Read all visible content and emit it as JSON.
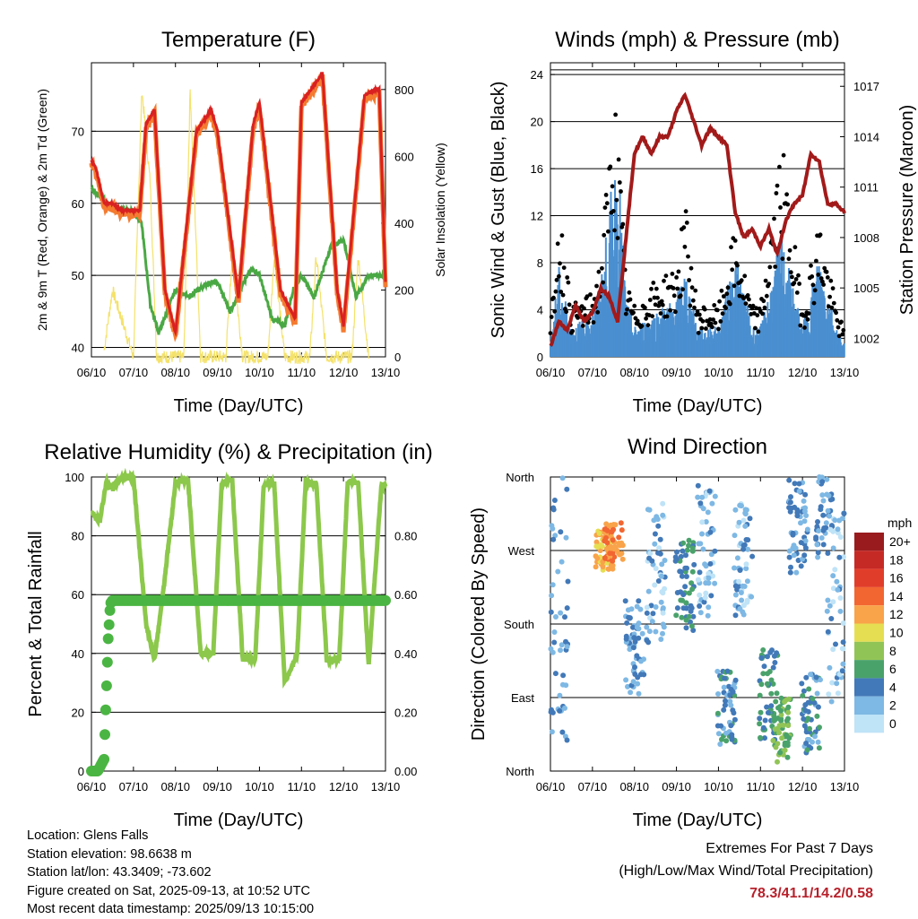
{
  "colors": {
    "temp2m": "#d92121",
    "temp9m": "#f47b30",
    "dewpoint": "#4aa844",
    "solar": "#f4e26b",
    "wind": "#4a8fd0",
    "gust": "#000000",
    "pressure": "#a21a1a",
    "rh": "#8cc84b",
    "precip": "#4bb543",
    "extremes": "#b8212b"
  },
  "info": {
    "location": "Location: Glens Falls",
    "elevation": "Station elevation: 98.6638 m",
    "latlon": "Station lat/lon: 43.3409; -73.602",
    "created": "Figure created on Sat, 2025-09-13, at 10:52 UTC",
    "recent": "Most recent data timestamp: 2025/09/13 10:15:00"
  },
  "extremes": {
    "title": "Extremes For Past 7 Days",
    "subtitle": "(High/Low/Max Wind/Total Precipitation)",
    "values": "78.3/41.1/14.2/0.58"
  },
  "chart_data": [
    {
      "type": "line",
      "title": "Temperature (F)",
      "xlabel": "Time (Day/UTC)",
      "ylabel": "2m & 9m T (Red, Orange) & 2m Td (Green)",
      "y2label": "Solar Insolation (Yellow)",
      "xticks": [
        "06/10",
        "07/10",
        "08/10",
        "09/10",
        "10/10",
        "11/10",
        "12/10",
        "13/10"
      ],
      "ylim": [
        38.7,
        79.5
      ],
      "yticks": [
        40,
        50,
        60,
        70
      ],
      "y2lim": [
        0,
        880
      ],
      "y2ticks": [
        0,
        200,
        400,
        600,
        800
      ],
      "series": [
        {
          "key": "temp2m",
          "x": [
            0,
            0.1,
            0.3,
            0.5,
            0.7,
            0.85,
            1.0,
            1.15,
            1.3,
            1.5,
            1.75,
            2.0,
            2.5,
            2.85,
            3.0,
            3.5,
            3.85,
            4.0,
            4.5,
            4.85,
            5.0,
            5.5,
            5.85,
            6.0,
            6.5,
            6.85,
            7.0
          ],
          "y": [
            66,
            65,
            60,
            60,
            59,
            59,
            59,
            59,
            71,
            73,
            48,
            42,
            70,
            73,
            70,
            47,
            71,
            74,
            48,
            44,
            74,
            78,
            48,
            43,
            75,
            76,
            49
          ]
        },
        {
          "key": "dewpoint",
          "x": [
            0,
            0.2,
            0.4,
            0.7,
            1.0,
            1.2,
            1.4,
            1.6,
            2.0,
            2.3,
            2.8,
            3.0,
            3.3,
            3.8,
            4.0,
            4.3,
            4.6,
            4.8,
            5.0,
            5.3,
            5.7,
            6.0,
            6.3,
            6.6,
            7.0
          ],
          "y": [
            62,
            61,
            60,
            59,
            59,
            57,
            46,
            42,
            48,
            47,
            49,
            49,
            45,
            51,
            50,
            44,
            43,
            48,
            50,
            47,
            54,
            55,
            47,
            50,
            50
          ]
        },
        {
          "key": "solar",
          "x": [
            0.3,
            0.5,
            1.0,
            1.2,
            1.4,
            1.55,
            1.7,
            2.2,
            2.35,
            2.6,
            3.2,
            3.35,
            3.6,
            4.2,
            4.35,
            4.6,
            5.2,
            5.35,
            5.6,
            6.2,
            6.35,
            6.6
          ],
          "y": [
            20,
            200,
            0,
            800,
            520,
            0,
            0,
            0,
            800,
            0,
            0,
            300,
            0,
            0,
            300,
            0,
            0,
            300,
            0,
            0,
            300,
            0
          ]
        }
      ]
    },
    {
      "type": "line",
      "title": "Winds (mph) & Pressure (mb)",
      "xlabel": "Time (Day/UTC)",
      "ylabel": "Sonic Wind & Gust (Blue, Black)",
      "y2label": "Station Pressure (Maroon)",
      "xticks": [
        "06/10",
        "07/10",
        "08/10",
        "09/10",
        "10/10",
        "11/10",
        "12/10",
        "13/10"
      ],
      "ylim": [
        0,
        25
      ],
      "yticks": [
        0,
        4,
        8,
        12,
        16,
        20,
        24
      ],
      "y2lim": [
        1000.9,
        1018.4
      ],
      "y2ticks": [
        1002,
        1005,
        1008,
        1011,
        1014,
        1017
      ],
      "series": [
        {
          "key": "wind",
          "x": [
            0,
            0.2,
            0.5,
            1.0,
            1.2,
            1.4,
            1.6,
            1.8,
            2.0,
            2.5,
            3.0,
            3.2,
            3.5,
            4.0,
            4.4,
            4.8,
            5.0,
            5.5,
            6.0,
            6.4,
            6.8,
            7.0
          ],
          "y": [
            1,
            6,
            2,
            3,
            5,
            10,
            14,
            4,
            2,
            3,
            4,
            6,
            2,
            2,
            7,
            2,
            2,
            8,
            2,
            7,
            2,
            1
          ]
        },
        {
          "key": "gust",
          "x": [
            0,
            0.2,
            0.5,
            1.0,
            1.2,
            1.4,
            1.5,
            1.6,
            1.8,
            2.0,
            2.5,
            3.0,
            3.2,
            3.5,
            4.0,
            4.4,
            4.8,
            5.0,
            5.5,
            6.0,
            6.4,
            6.8,
            7.0
          ],
          "y": [
            2,
            12,
            4,
            5,
            8,
            16,
            22,
            18,
            6,
            4,
            6,
            7,
            12,
            4,
            4,
            10,
            4,
            4,
            17,
            4,
            11,
            4,
            2
          ]
        },
        {
          "key": "pressure",
          "x": [
            0,
            0.2,
            0.4,
            0.6,
            0.8,
            1.0,
            1.2,
            1.4,
            1.6,
            1.8,
            2.0,
            2.2,
            2.4,
            2.6,
            2.8,
            3.0,
            3.2,
            3.4,
            3.6,
            3.8,
            4.0,
            4.2,
            4.4,
            4.6,
            4.8,
            5.0,
            5.2,
            5.4,
            5.6,
            5.8,
            6.0,
            6.2,
            6.4,
            6.6,
            6.8,
            7.0
          ],
          "y": [
            1001.5,
            1003,
            1002.5,
            1004,
            1003,
            1003.5,
            1005,
            1004.5,
            1003,
            1008,
            1013,
            1014,
            1013,
            1014,
            1014,
            1015.5,
            1016.5,
            1015,
            1013.5,
            1014.5,
            1014,
            1013.5,
            1009.5,
            1008,
            1008.5,
            1007.5,
            1008.5,
            1007,
            1009,
            1010,
            1010.5,
            1013,
            1012.5,
            1010,
            1010,
            1009.5
          ]
        }
      ]
    },
    {
      "type": "line",
      "title": "Relative Humidity (%) & Precipitation (in)",
      "xlabel": "Time (Day/UTC)",
      "ylabel": "Percent & Total Rainfall",
      "xticks": [
        "06/10",
        "07/10",
        "08/10",
        "09/10",
        "10/10",
        "11/10",
        "12/10",
        "13/10"
      ],
      "ylim": [
        0,
        100
      ],
      "yticks": [
        0,
        20,
        40,
        60,
        80,
        100
      ],
      "y2lim": [
        0,
        1.0
      ],
      "y2ticks": [
        "0.00",
        "0.20",
        "0.40",
        "0.60",
        "0.80"
      ],
      "series": [
        {
          "key": "rh",
          "x": [
            0,
            0.2,
            0.35,
            0.5,
            0.7,
            1.0,
            1.3,
            1.5,
            1.7,
            2.0,
            2.3,
            2.6,
            2.9,
            3.1,
            3.35,
            3.6,
            3.9,
            4.1,
            4.35,
            4.6,
            4.9,
            5.1,
            5.35,
            5.6,
            5.9,
            6.1,
            6.35,
            6.6,
            6.9,
            7.0
          ],
          "y": [
            88,
            85,
            98,
            96,
            100,
            100,
            50,
            38,
            60,
            98,
            99,
            40,
            40,
            98,
            99,
            38,
            38,
            97,
            98,
            30,
            40,
            98,
            98,
            38,
            38,
            98,
            98,
            36,
            97,
            97
          ]
        },
        {
          "key": "precip",
          "x": [
            0,
            0.15,
            0.3,
            0.35,
            0.4,
            0.45,
            0.5,
            1.0,
            2.0,
            3.0,
            4.0,
            5.0,
            6.0,
            7.0
          ],
          "y": [
            0.0,
            0.0,
            0.04,
            0.25,
            0.45,
            0.57,
            0.58,
            0.58,
            0.58,
            0.58,
            0.58,
            0.58,
            0.58,
            0.58
          ]
        }
      ]
    },
    {
      "type": "scatter",
      "title": "Wind Direction",
      "xlabel": "Time (Day/UTC)",
      "ylabel": "Direction (Colored By Speed)",
      "xticks": [
        "06/10",
        "07/10",
        "08/10",
        "09/10",
        "10/10",
        "11/10",
        "12/10",
        "13/10"
      ],
      "yticks": [
        "North",
        "East",
        "South",
        "West",
        "North"
      ],
      "ylim": [
        0,
        360
      ],
      "legend_title": "mph",
      "legend": [
        "20+",
        "18",
        "16",
        "14",
        "12",
        "10",
        "8",
        "6",
        "4",
        "2",
        "0"
      ],
      "legend_colors": [
        "#991b1e",
        "#c62a25",
        "#e13d2b",
        "#f26631",
        "#f9a34a",
        "#e6de52",
        "#91c456",
        "#4aa26b",
        "#4279b8",
        "#7eb8e4",
        "#bfe3f7"
      ],
      "clusters": [
        {
          "x": 0.2,
          "dir": 200,
          "spread": 170,
          "speed": 3
        },
        {
          "x": 1.3,
          "dir": 270,
          "spread": 25,
          "speed": 11
        },
        {
          "x": 1.5,
          "dir": 280,
          "spread": 25,
          "speed": 13
        },
        {
          "x": 2.0,
          "dir": 150,
          "spread": 60,
          "speed": 3
        },
        {
          "x": 2.5,
          "dir": 240,
          "spread": 90,
          "speed": 2
        },
        {
          "x": 3.2,
          "dir": 230,
          "spread": 60,
          "speed": 5
        },
        {
          "x": 3.7,
          "dir": 270,
          "spread": 80,
          "speed": 2
        },
        {
          "x": 4.2,
          "dir": 80,
          "spread": 50,
          "speed": 4
        },
        {
          "x": 4.6,
          "dir": 260,
          "spread": 70,
          "speed": 2
        },
        {
          "x": 5.2,
          "dir": 90,
          "spread": 60,
          "speed": 5
        },
        {
          "x": 5.5,
          "dir": 50,
          "spread": 40,
          "speed": 7
        },
        {
          "x": 5.9,
          "dir": 300,
          "spread": 60,
          "speed": 3
        },
        {
          "x": 6.2,
          "dir": 70,
          "spread": 50,
          "speed": 4
        },
        {
          "x": 6.5,
          "dir": 320,
          "spread": 60,
          "speed": 3
        },
        {
          "x": 6.8,
          "dir": 200,
          "spread": 120,
          "speed": 2
        }
      ]
    }
  ]
}
